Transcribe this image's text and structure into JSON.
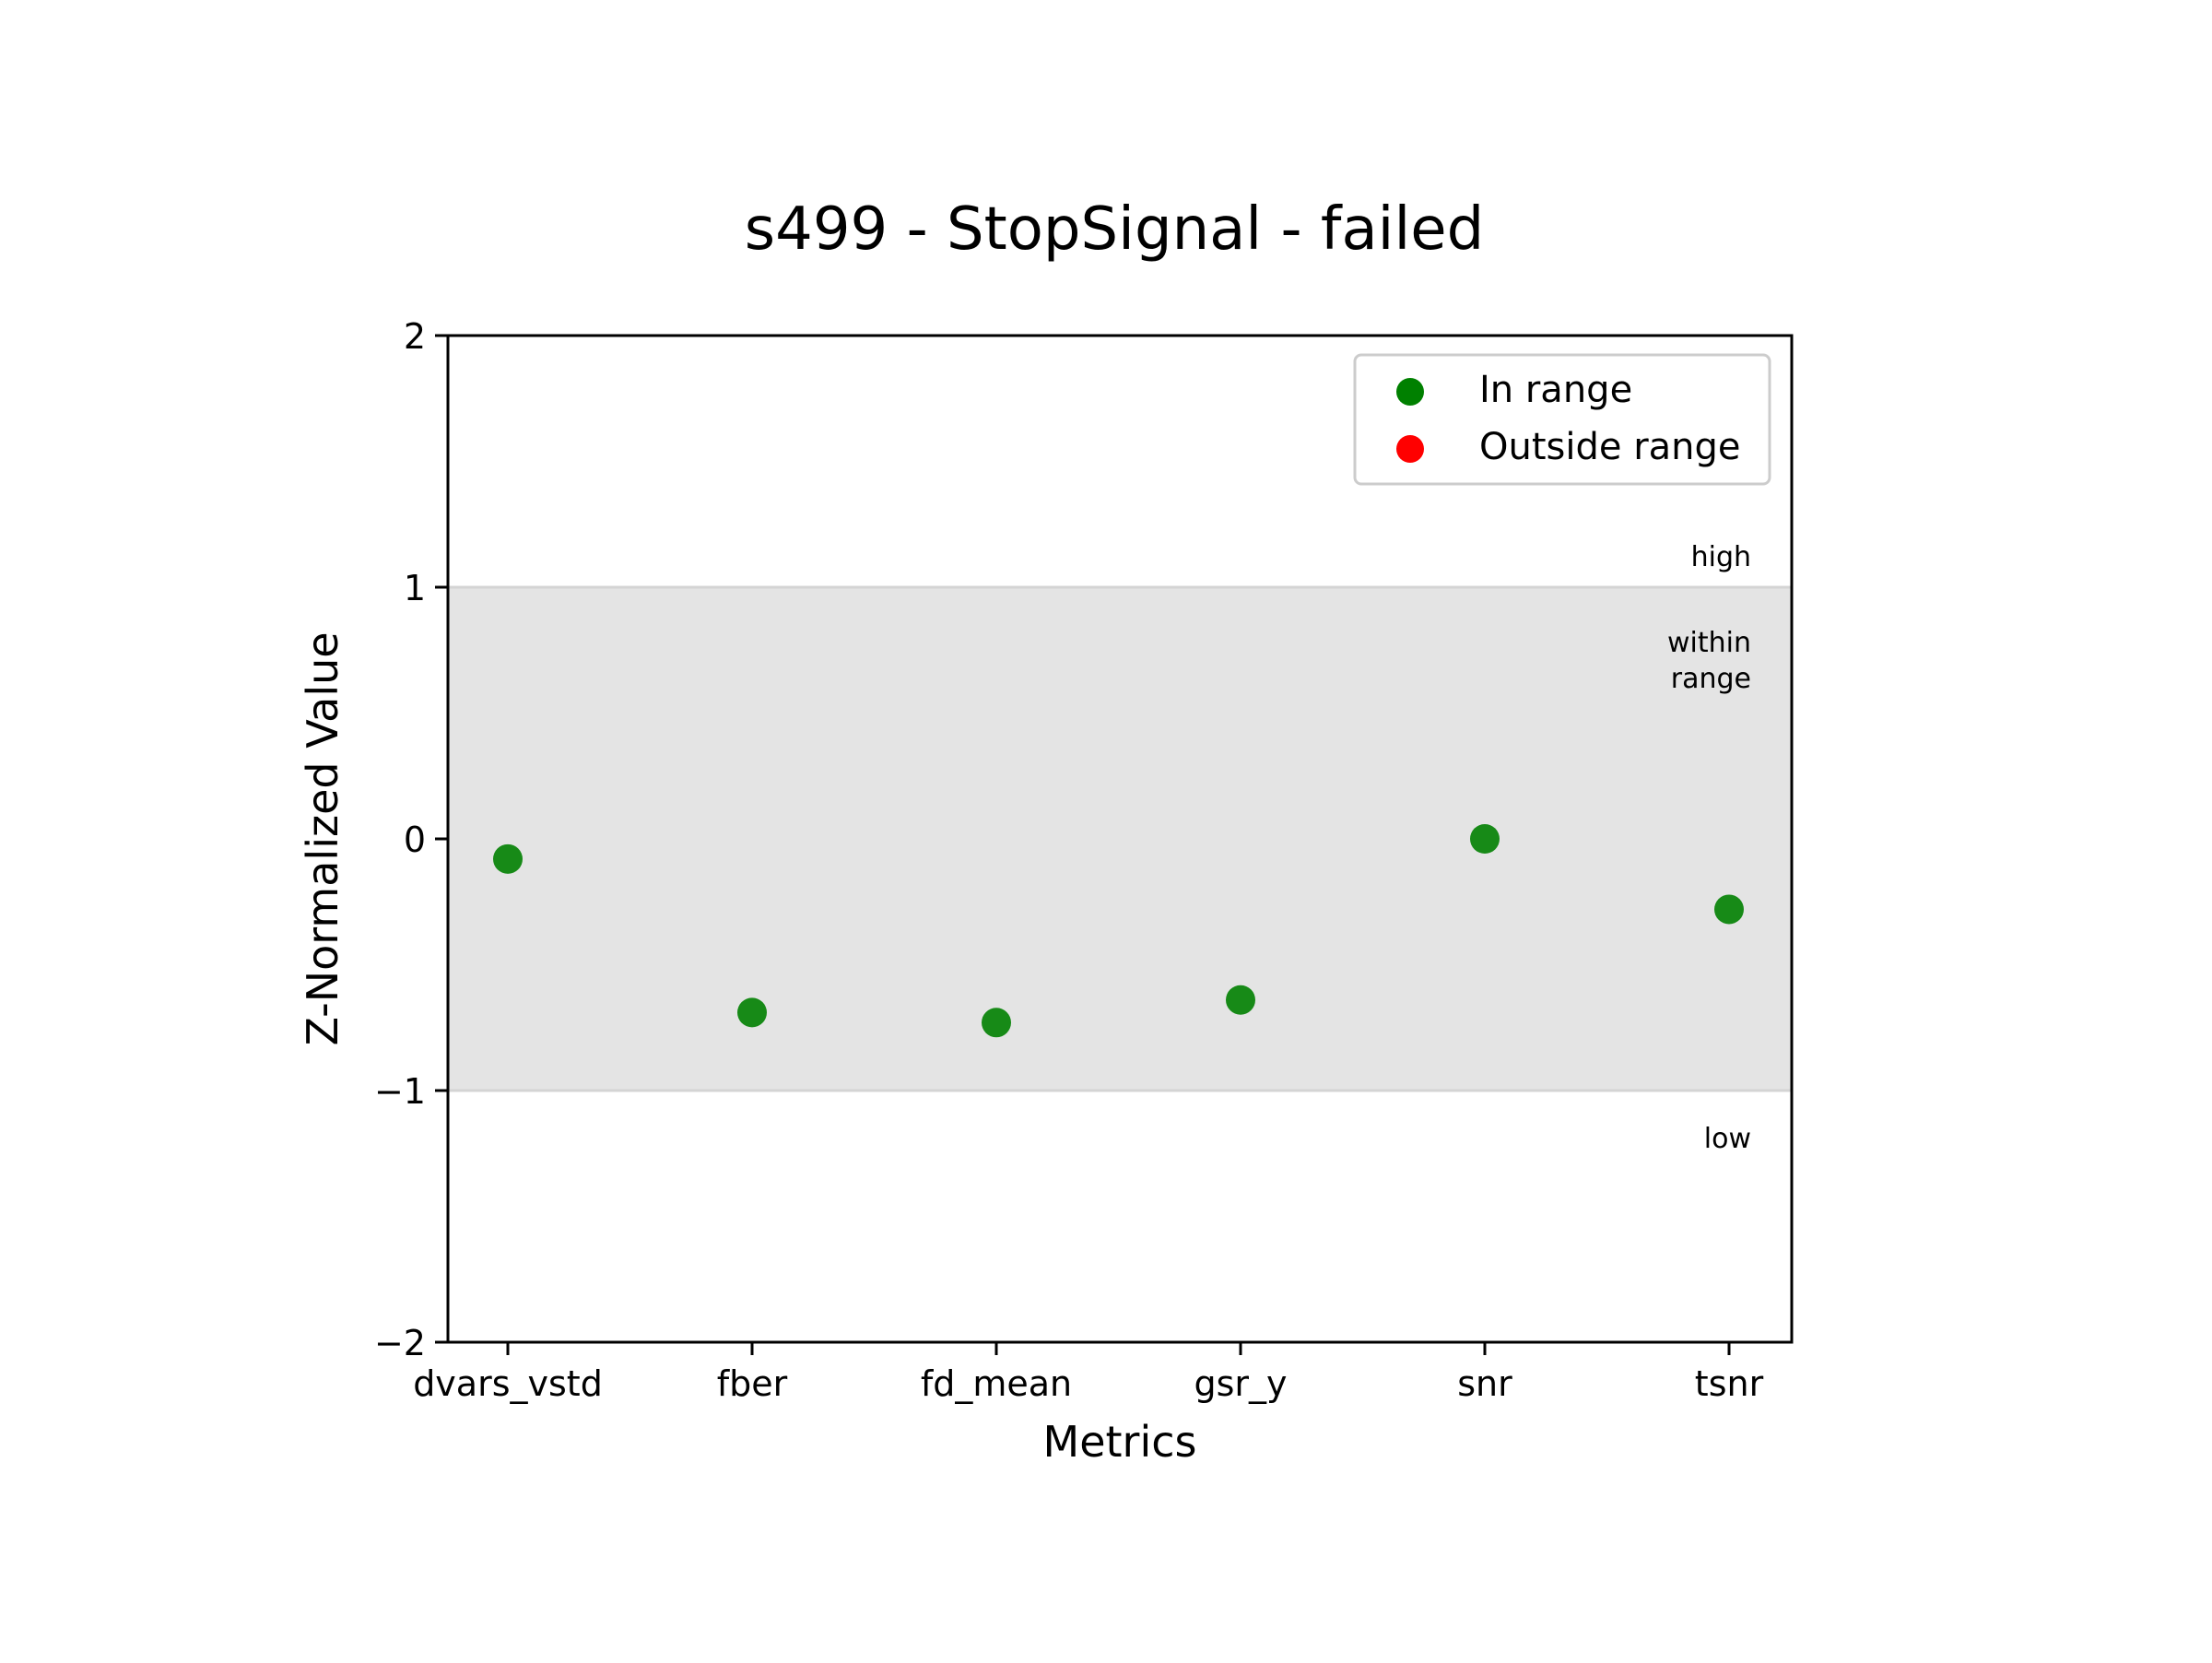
{
  "chart_data": {
    "type": "scatter",
    "title": "s499 - StopSignal - failed",
    "xlabel": "Metrics",
    "ylabel": "Z-Normalized Value",
    "categories": [
      "dvars_vstd",
      "fber",
      "fd_mean",
      "gsr_y",
      "snr",
      "tsnr"
    ],
    "ylim": [
      -2,
      2
    ],
    "yticks": [
      {
        "value": 2,
        "label": "2"
      },
      {
        "value": 1,
        "label": "1"
      },
      {
        "value": 0,
        "label": "0"
      },
      {
        "value": -1,
        "label": "−1"
      },
      {
        "value": -2,
        "label": "−2"
      }
    ],
    "series": [
      {
        "name": "In range",
        "color": "#008000",
        "points": [
          {
            "x": "dvars_vstd",
            "y": -0.08
          },
          {
            "x": "fber",
            "y": -0.69
          },
          {
            "x": "fd_mean",
            "y": -0.73
          },
          {
            "x": "gsr_y",
            "y": -0.64
          },
          {
            "x": "snr",
            "y": 0.0
          },
          {
            "x": "tsnr",
            "y": -0.28
          }
        ]
      },
      {
        "name": "Outside range",
        "color": "#ff0000",
        "points": []
      }
    ],
    "band": {
      "from": -1,
      "to": 1,
      "color": "#e4e4e4",
      "line_color": "#d4d4d4"
    },
    "annotations": {
      "high": "high",
      "within_line1": "within",
      "within_line2": "range",
      "low": "low"
    },
    "legend": {
      "placement": "top-right"
    },
    "grid": false
  }
}
